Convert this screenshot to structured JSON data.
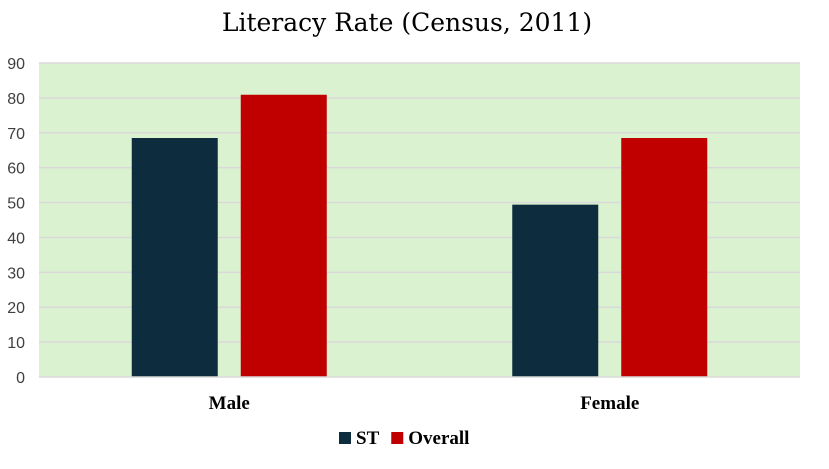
{
  "chart_data": {
    "type": "bar",
    "title": "Literacy Rate (Census, 2011)",
    "categories": [
      "Male",
      "Female"
    ],
    "series": [
      {
        "name": "ST",
        "values": [
          68.5,
          49.4
        ],
        "color": "#0d2d3f"
      },
      {
        "name": "Overall",
        "values": [
          80.9,
          68.5
        ],
        "color": "#c00000"
      }
    ],
    "ylim": [
      0,
      90
    ],
    "yticks": [
      0,
      10,
      20,
      30,
      40,
      50,
      60,
      70,
      80,
      90
    ],
    "plot_background": "#daf2d0",
    "gridlines": true,
    "legend_position": "bottom",
    "xlabel": "",
    "ylabel": ""
  }
}
